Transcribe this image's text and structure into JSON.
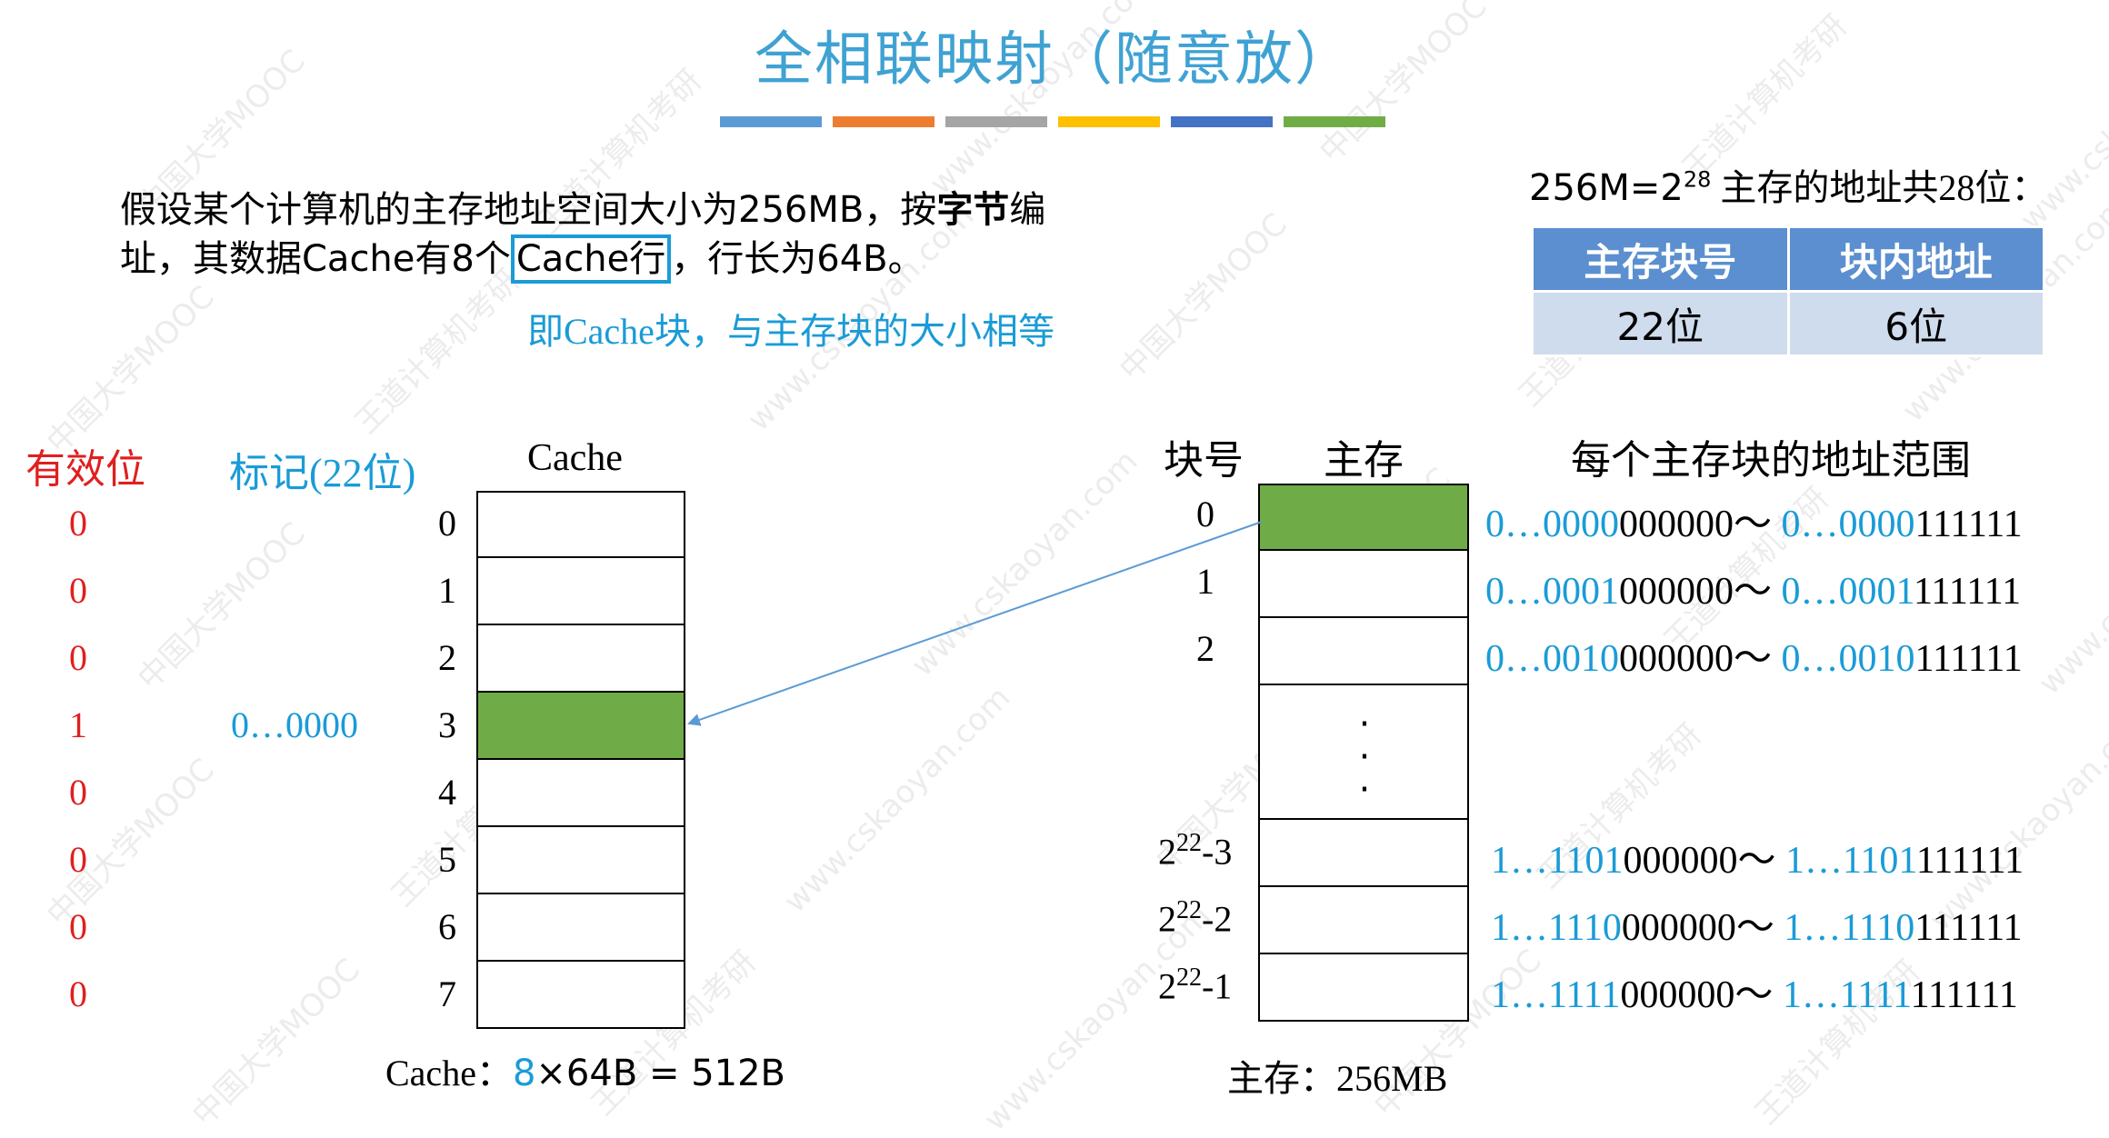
{
  "title": "全相联映射（随意放）",
  "color_bars": [
    "#5b9bd5",
    "#ed7d31",
    "#a5a5a5",
    "#ffc000",
    "#4472c4",
    "#70ad47"
  ],
  "intro": {
    "line1_a": "假设某个计算机的主存地址空间大小为256MB，按",
    "line1_bold": "字节",
    "line1_b": "编",
    "line2_a": "址，其数据Cache有8个",
    "line2_box": "Cache行",
    "line2_b": "，行长为64B。",
    "note": "即Cache块，与主存块的大小相等"
  },
  "address": {
    "caption_a": "256M=2",
    "caption_sup": "28",
    "caption_b": " 主存的地址共28位：",
    "headers": [
      "主存块号",
      "块内地址"
    ],
    "values": [
      "22位",
      "6位"
    ]
  },
  "cache": {
    "valid_header": "有效位",
    "tag_header": "标记(22位)",
    "title": "Cache",
    "rows": [
      {
        "index": "0",
        "valid": "0",
        "tag": ""
      },
      {
        "index": "1",
        "valid": "0",
        "tag": ""
      },
      {
        "index": "2",
        "valid": "0",
        "tag": ""
      },
      {
        "index": "3",
        "valid": "1",
        "tag": "0…0000"
      },
      {
        "index": "4",
        "valid": "0",
        "tag": ""
      },
      {
        "index": "5",
        "valid": "0",
        "tag": ""
      },
      {
        "index": "6",
        "valid": "0",
        "tag": ""
      },
      {
        "index": "7",
        "valid": "0",
        "tag": ""
      }
    ],
    "highlighted_row": 3,
    "size_a": "Cache：",
    "size_count": "8",
    "size_b": "×64B = 512B"
  },
  "memory": {
    "block_header": "块号",
    "title": "主存",
    "range_header": "每个主存块的地址范围",
    "blocks": [
      {
        "label": "0",
        "label_sup": "",
        "label_suffix": "",
        "r1": "0…0000",
        "r2": "000000～ ",
        "r3": "0…0000",
        "r4": "111111"
      },
      {
        "label": "1",
        "label_sup": "",
        "label_suffix": "",
        "r1": "0…0001",
        "r2": "000000～ ",
        "r3": "0…0001",
        "r4": "111111"
      },
      {
        "label": "2",
        "label_sup": "",
        "label_suffix": "",
        "r1": "0…0010",
        "r2": "000000～ ",
        "r3": "0…0010",
        "r4": "111111"
      },
      {
        "label": "2",
        "label_sup": "22",
        "label_suffix": "-3",
        "r1": "1…1101",
        "r2": "000000～ ",
        "r3": "1…1101",
        "r4": "111111"
      },
      {
        "label": "2",
        "label_sup": "22",
        "label_suffix": "-2",
        "r1": "1…1110",
        "r2": "000000～ ",
        "r3": "1…1110",
        "r4": "111111"
      },
      {
        "label": "2",
        "label_sup": "22",
        "label_suffix": "-1",
        "r1": "1…1111",
        "r2": "000000～ ",
        "r3": "1…1111",
        "r4": "111111"
      }
    ],
    "ellipsis": [
      "·",
      "·",
      "·"
    ],
    "size": "主存：256MB"
  },
  "watermarks": [
    "中国大学MOOC",
    "王道计算机考研",
    "www.cskaoyan.com"
  ]
}
